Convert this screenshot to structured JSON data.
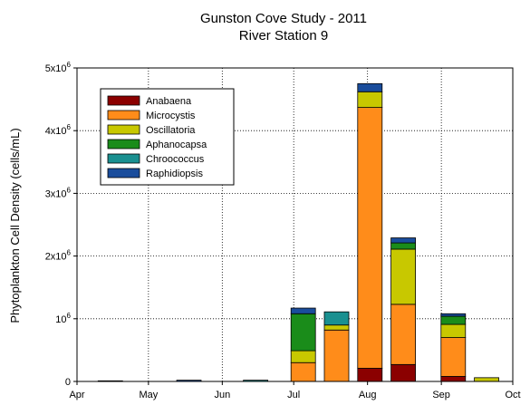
{
  "chart_data": {
    "type": "bar",
    "stacked": true,
    "title": "Gunston Cove Study - 2011",
    "subtitle": "River Station 9",
    "ylabel": "Phytoplankton Cell Density (cells/mL)",
    "xlabel": "",
    "x_ticks": [
      "Apr",
      "May",
      "Jun",
      "Jul",
      "Aug",
      "Sep",
      "Oct"
    ],
    "y_ticks": [
      {
        "value": 0,
        "base": "0",
        "exp": ""
      },
      {
        "value": 1000000,
        "base": "10",
        "exp": "6"
      },
      {
        "value": 2000000,
        "base": "2x10",
        "exp": "6"
      },
      {
        "value": 3000000,
        "base": "3x10",
        "exp": "6"
      },
      {
        "value": 4000000,
        "base": "4x10",
        "exp": "6"
      },
      {
        "value": 5000000,
        "base": "5x10",
        "exp": "6"
      }
    ],
    "ylim": [
      0,
      5000000
    ],
    "grid": "dotted, at month ticks and each 10^6",
    "legend_position": "top-left",
    "series_names": [
      "Anabaena",
      "Microcystis",
      "Oscillatoria",
      "Aphanocapsa",
      "Chroococcus",
      "Raphidiopsis"
    ],
    "colors": [
      "#8b0000",
      "#ff8c1a",
      "#c8c800",
      "#1a8c1a",
      "#1a9090",
      "#1a4d9c"
    ],
    "bars": [
      {
        "date": "Apr 15",
        "values": [
          0,
          0,
          0,
          0,
          0,
          10000
        ]
      },
      {
        "date": "May 18",
        "values": [
          0,
          0,
          0,
          0,
          0,
          20000
        ]
      },
      {
        "date": "Jun 15",
        "values": [
          0,
          0,
          0,
          0,
          20000,
          0
        ]
      },
      {
        "date": "Jul 5",
        "values": [
          0,
          300000,
          190000,
          590000,
          0,
          90000
        ]
      },
      {
        "date": "Jul 19",
        "values": [
          0,
          820000,
          80000,
          0,
          210000,
          0
        ]
      },
      {
        "date": "Aug 2",
        "values": [
          210000,
          4160000,
          250000,
          0,
          0,
          130000
        ]
      },
      {
        "date": "Aug 16",
        "values": [
          270000,
          960000,
          880000,
          100000,
          0,
          80000
        ]
      },
      {
        "date": "Sep 6",
        "values": [
          80000,
          620000,
          210000,
          130000,
          0,
          40000
        ]
      },
      {
        "date": "Sep 20",
        "values": [
          0,
          0,
          60000,
          0,
          0,
          0
        ]
      }
    ]
  }
}
